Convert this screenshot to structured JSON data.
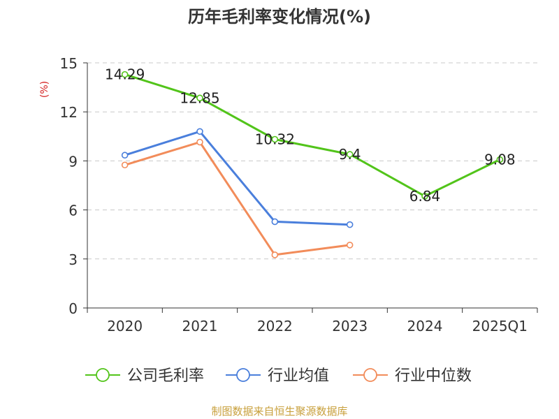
{
  "chart_data": {
    "type": "line",
    "title": "历年毛利率变化情况(%)",
    "ylabel": "(%)",
    "xlabel": "",
    "categories": [
      "2020",
      "2021",
      "2022",
      "2023",
      "2024",
      "2025Q1"
    ],
    "ylim": [
      0,
      15
    ],
    "yticks": [
      "0",
      "3",
      "6",
      "9",
      "12",
      "15"
    ],
    "grid": true,
    "legend_position": "bottom",
    "series": [
      {
        "name": "公司毛利率",
        "color": "#52c41a",
        "values": [
          14.29,
          12.85,
          10.32,
          9.4,
          6.84,
          9.08
        ],
        "labels": [
          "14.29",
          "12.85",
          "10.32",
          "9.4",
          "6.84",
          "9.08"
        ],
        "show_labels": true
      },
      {
        "name": "行业均值",
        "color": "#4a7fdc",
        "values": [
          9.35,
          10.8,
          5.28,
          5.1,
          null,
          null
        ],
        "show_labels": false
      },
      {
        "name": "行业中位数",
        "color": "#f28c5a",
        "values": [
          8.75,
          10.15,
          3.25,
          3.85,
          null,
          null
        ],
        "show_labels": false
      }
    ],
    "source": "制图数据来自恒生聚源数据库"
  }
}
